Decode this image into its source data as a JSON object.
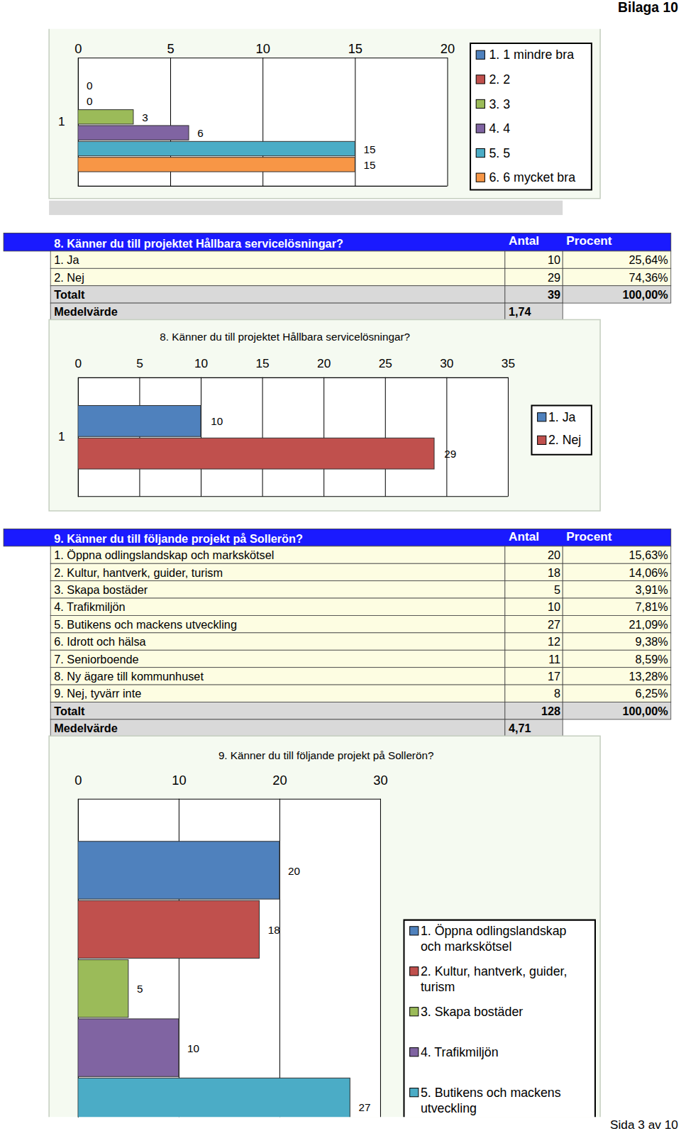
{
  "page": {
    "header": "Bilaga 10",
    "footer": "Sida 3 av 10"
  },
  "chart_data": [
    {
      "type": "bar",
      "orientation": "horizontal",
      "categories": [
        "1"
      ],
      "series": [
        {
          "name": "1. 1 mindre bra",
          "color": "#4f81bd",
          "values": [
            0
          ]
        },
        {
          "name": "2. 2",
          "color": "#c0504d",
          "values": [
            0
          ]
        },
        {
          "name": "3. 3",
          "color": "#9bbb59",
          "values": [
            3
          ]
        },
        {
          "name": "4. 4",
          "color": "#8064a2",
          "values": [
            6
          ]
        },
        {
          "name": "5. 5",
          "color": "#4bacc6",
          "values": [
            15
          ]
        },
        {
          "name": "6. 6 mycket bra",
          "color": "#f79646",
          "values": [
            15
          ]
        }
      ],
      "xlim": [
        0,
        20
      ],
      "xticks": [
        0,
        5,
        10,
        15,
        20
      ],
      "grid": true,
      "data_labels": true,
      "legend": "right"
    },
    {
      "type": "bar",
      "title": "8. Känner du till projektet Hållbara servicelösningar?",
      "orientation": "horizontal",
      "categories": [
        "1"
      ],
      "series": [
        {
          "name": "1. Ja",
          "color": "#4f81bd",
          "values": [
            10
          ]
        },
        {
          "name": "2. Nej",
          "color": "#c0504d",
          "values": [
            29
          ]
        }
      ],
      "xlim": [
        0,
        35
      ],
      "xticks": [
        0,
        5,
        10,
        15,
        20,
        25,
        30,
        35
      ],
      "grid": true,
      "data_labels": true,
      "legend": "right"
    },
    {
      "type": "bar",
      "title": "9. Känner du till följande projekt på Sollerön?",
      "orientation": "horizontal",
      "categories": [
        null
      ],
      "series": [
        {
          "name": "1. Öppna odlingslandskap och markskötsel",
          "color": "#4f81bd",
          "values": [
            20
          ]
        },
        {
          "name": "2. Kultur, hantverk, guider, turism",
          "color": "#c0504d",
          "values": [
            18
          ]
        },
        {
          "name": "3. Skapa bostäder",
          "color": "#9bbb59",
          "values": [
            5
          ]
        },
        {
          "name": "4. Trafikmiljön",
          "color": "#8064a2",
          "values": [
            10
          ]
        },
        {
          "name": "5. Butikens och mackens utveckling",
          "color": "#4bacc6",
          "values": [
            27
          ]
        }
      ],
      "xlim": [
        0,
        30
      ],
      "xticks": [
        0,
        10,
        20,
        30
      ],
      "grid": true,
      "data_labels": true,
      "legend": "right"
    }
  ],
  "tables": [
    {
      "header": [
        "8. Känner du till projektet Hållbara servicelösningar?",
        "Antal",
        "Procent"
      ],
      "rows": [
        [
          "1. Ja",
          "10",
          "25,64%"
        ],
        [
          "2. Nej",
          "29",
          "74,36%"
        ]
      ],
      "total": [
        "Totalt",
        "39",
        "100,00%"
      ],
      "mean": [
        "Medelvärde",
        "1,74"
      ]
    },
    {
      "header": [
        "9. Känner du till följande projekt på Sollerön?",
        "Antal",
        "Procent"
      ],
      "rows": [
        [
          "1. Öppna odlingslandskap och markskötsel",
          "20",
          "15,63%"
        ],
        [
          "2. Kultur, hantverk, guider, turism",
          "18",
          "14,06%"
        ],
        [
          "3. Skapa bostäder",
          "5",
          "3,91%"
        ],
        [
          "4. Trafikmiljön",
          "10",
          "7,81%"
        ],
        [
          "5. Butikens och mackens utveckling",
          "27",
          "21,09%"
        ],
        [
          "6. Idrott och hälsa",
          "12",
          "9,38%"
        ],
        [
          "7. Seniorboende",
          "11",
          "8,59%"
        ],
        [
          "8. Ny ägare till kommunhuset",
          "17",
          "13,28%"
        ],
        [
          "9. Nej, tyvärr inte",
          "8",
          "6,25%"
        ]
      ],
      "total": [
        "Totalt",
        "128",
        "100,00%"
      ],
      "mean": [
        "Medelvärde",
        "4,71"
      ]
    }
  ]
}
